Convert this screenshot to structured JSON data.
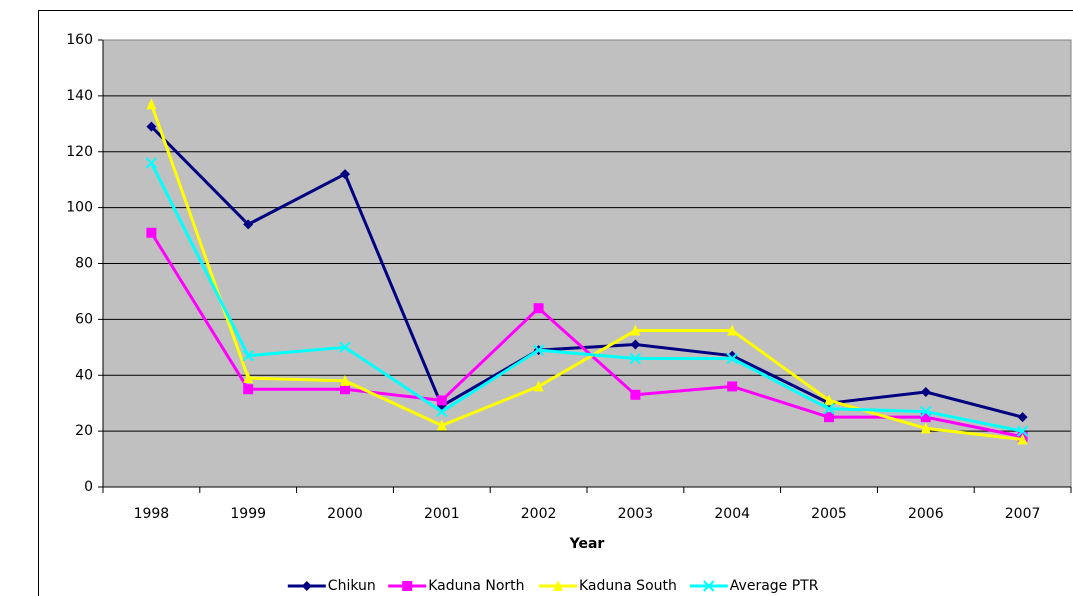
{
  "chart_data": {
    "type": "line",
    "x_label": "Year",
    "categories": [
      "1998",
      "1999",
      "2000",
      "2001",
      "2002",
      "2003",
      "2004",
      "2005",
      "2006",
      "2007"
    ],
    "series": [
      {
        "name": "Chikun",
        "color": "#000080",
        "marker": "diamond",
        "values": [
          129,
          94,
          112,
          29,
          49,
          51,
          47,
          30,
          34,
          25
        ]
      },
      {
        "name": "Kaduna North",
        "color": "#ff00ff",
        "marker": "square",
        "values": [
          91,
          35,
          35,
          31,
          64,
          33,
          36,
          25,
          25,
          18
        ]
      },
      {
        "name": "Kaduna South",
        "color": "#ffff00",
        "marker": "triangle",
        "values": [
          137,
          39,
          38,
          22,
          36,
          56,
          56,
          31,
          21,
          17
        ]
      },
      {
        "name": "Average PTR",
        "color": "#00ffff",
        "marker": "x",
        "values": [
          116,
          47,
          50,
          27,
          49,
          46,
          46,
          28,
          27,
          20
        ]
      }
    ],
    "ylim": [
      0,
      160
    ],
    "yticks": [
      0,
      20,
      40,
      60,
      80,
      100,
      120,
      140,
      160
    ],
    "grid": true,
    "plot_background": "#c0c0c0",
    "legend": "bottom"
  }
}
